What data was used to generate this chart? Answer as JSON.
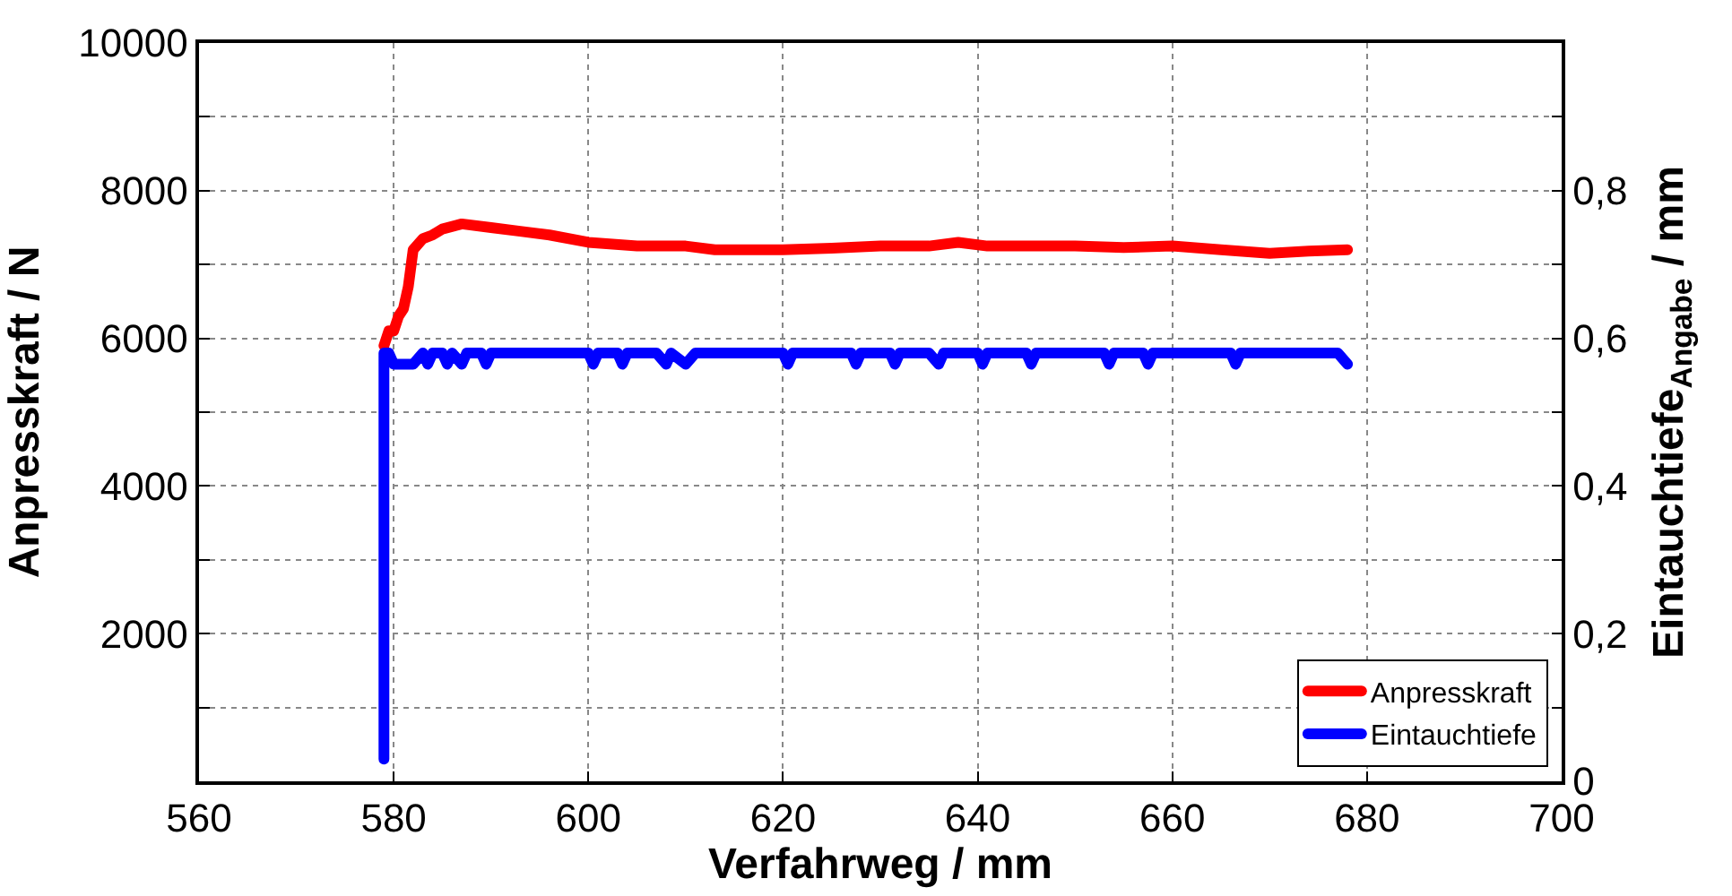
{
  "chart_data": {
    "type": "line",
    "xlabel": "Verfahrweg / mm",
    "ylabel": "Anpresskraft / N",
    "y2label": "Eintauchtiefe$_{Angabe}$ / mm",
    "xlim": [
      560,
      700
    ],
    "xticks": [
      560,
      580,
      600,
      620,
      640,
      660,
      680,
      700
    ],
    "ylim": [
      0,
      10000
    ],
    "yticks": [
      {
        "value": 1000,
        "label": null
      },
      2000,
      {
        "value": 3000,
        "label": null
      },
      4000,
      {
        "value": 5000,
        "label": null
      },
      6000,
      {
        "value": 7000,
        "label": null
      },
      8000,
      {
        "value": 9000,
        "label": null
      },
      10000
    ],
    "y2lim": [
      0,
      1
    ],
    "y2ticks": [
      0,
      {
        "value": 0.1,
        "label": null
      },
      {
        "value": 0.2,
        "label": "0,2"
      },
      {
        "value": 0.3,
        "label": null
      },
      {
        "value": 0.4,
        "label": "0,4"
      },
      {
        "value": 0.5,
        "label": null
      },
      {
        "value": 0.6,
        "label": "0,6"
      },
      {
        "value": 0.7,
        "label": null
      },
      {
        "value": 0.8,
        "label": "0,8"
      },
      {
        "value": 0.9,
        "label": null
      }
    ],
    "grid": true,
    "legend": "bottom right",
    "line_style": "solid",
    "marker": "none",
    "series": [
      {
        "name": "Anpresskraft",
        "color": "#ff0000",
        "x": [
          579,
          579.5,
          580,
          580.5,
          581,
          581.5,
          582,
          583,
          584,
          585,
          587,
          590,
          593,
          596,
          600,
          605,
          610,
          613,
          620,
          625,
          630,
          635,
          638,
          641,
          645,
          650,
          655,
          660,
          665,
          670,
          674,
          678
        ],
        "values": [
          5900,
          6100,
          6100,
          6300,
          6400,
          6700,
          7200,
          7350,
          7400,
          7480,
          7550,
          7500,
          7450,
          7400,
          7300,
          7250,
          7250,
          7200,
          7200,
          7220,
          7250,
          7250,
          7300,
          7250,
          7250,
          7250,
          7230,
          7250,
          7200,
          7150,
          7180,
          7200
        ]
      },
      {
        "name": "Eintauchtiefe",
        "color": "#0000ff",
        "axis": "y2",
        "x": [
          579,
          579,
          579.5,
          580,
          582,
          583,
          583.5,
          584,
          585,
          585.5,
          586,
          587,
          587.5,
          588,
          589,
          589.5,
          590,
          591,
          600,
          600.5,
          601,
          603,
          603.5,
          604,
          607,
          608,
          608.5,
          610,
          611,
          620,
          620.5,
          621,
          627,
          627.5,
          628,
          631,
          631.5,
          632,
          635,
          636,
          636.5,
          637,
          640,
          640.5,
          641,
          645,
          645.5,
          646,
          653,
          653.5,
          654,
          657,
          657.5,
          658,
          666,
          666.5,
          667,
          677,
          678
        ],
        "values": [
          0.03,
          0.58,
          0.58,
          0.565,
          0.565,
          0.58,
          0.565,
          0.58,
          0.58,
          0.565,
          0.58,
          0.565,
          0.58,
          0.58,
          0.58,
          0.565,
          0.58,
          0.58,
          0.58,
          0.565,
          0.58,
          0.58,
          0.565,
          0.58,
          0.58,
          0.565,
          0.58,
          0.565,
          0.58,
          0.58,
          0.565,
          0.58,
          0.58,
          0.565,
          0.58,
          0.58,
          0.565,
          0.58,
          0.58,
          0.565,
          0.58,
          0.58,
          0.58,
          0.565,
          0.58,
          0.58,
          0.565,
          0.58,
          0.58,
          0.565,
          0.58,
          0.58,
          0.565,
          0.58,
          0.58,
          0.565,
          0.58,
          0.58,
          0.565
        ]
      }
    ]
  }
}
